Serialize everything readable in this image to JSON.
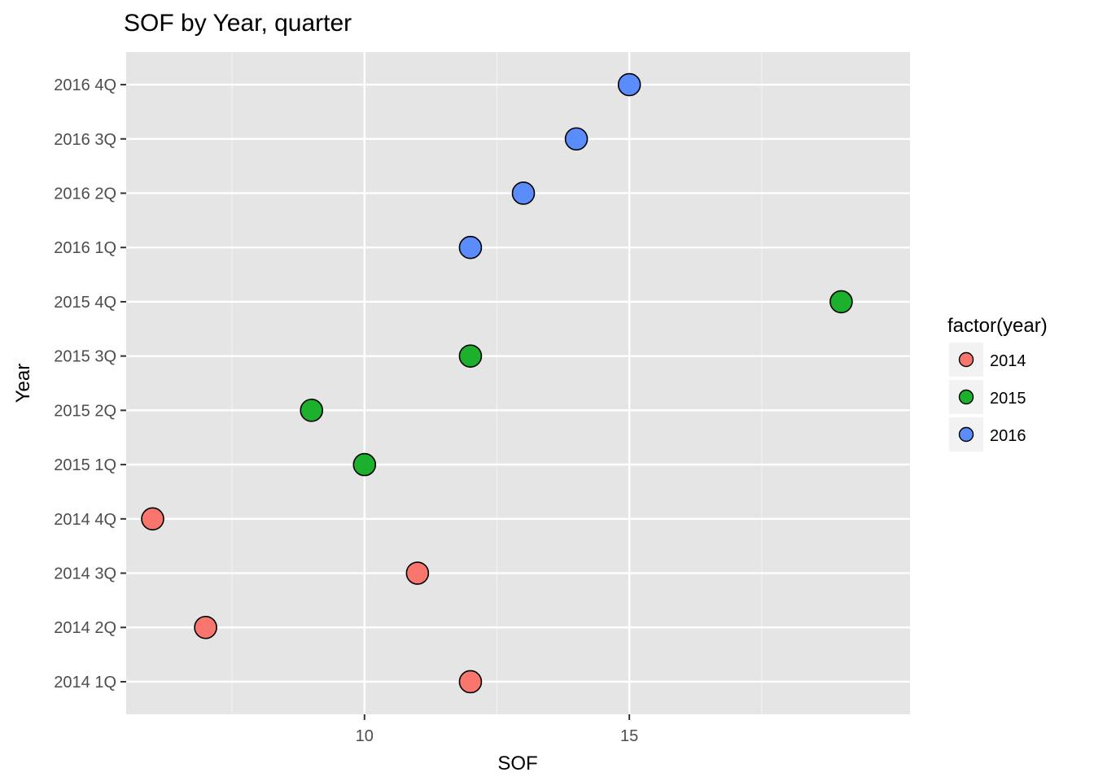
{
  "chart_data": {
    "type": "scatter",
    "title": "SOF by Year, quarter",
    "xlabel": "SOF",
    "ylabel": "Year",
    "xlim": [
      5.5,
      20.3
    ],
    "x_ticks": [
      10,
      15
    ],
    "categories": [
      "2014 1Q",
      "2014 2Q",
      "2014 3Q",
      "2014 4Q",
      "2015 1Q",
      "2015 2Q",
      "2015 3Q",
      "2015 4Q",
      "2016 1Q",
      "2016 2Q",
      "2016 3Q",
      "2016 4Q"
    ],
    "grid": true,
    "legend": {
      "title": "factor(year)",
      "position": "right"
    },
    "series": [
      {
        "name": "2014",
        "color": "#F8766D",
        "points": [
          {
            "y": "2014 1Q",
            "x": 12
          },
          {
            "y": "2014 2Q",
            "x": 7
          },
          {
            "y": "2014 3Q",
            "x": 11
          },
          {
            "y": "2014 4Q",
            "x": 6
          }
        ]
      },
      {
        "name": "2015",
        "color": "#1DB02C",
        "points": [
          {
            "y": "2015 1Q",
            "x": 10
          },
          {
            "y": "2015 2Q",
            "x": 9
          },
          {
            "y": "2015 3Q",
            "x": 12
          },
          {
            "y": "2015 4Q",
            "x": 19
          }
        ]
      },
      {
        "name": "2016",
        "color": "#5B8CFB",
        "points": [
          {
            "y": "2016 1Q",
            "x": 12
          },
          {
            "y": "2016 2Q",
            "x": 13
          },
          {
            "y": "2016 3Q",
            "x": 14
          },
          {
            "y": "2016 4Q",
            "x": 15
          }
        ]
      }
    ]
  }
}
